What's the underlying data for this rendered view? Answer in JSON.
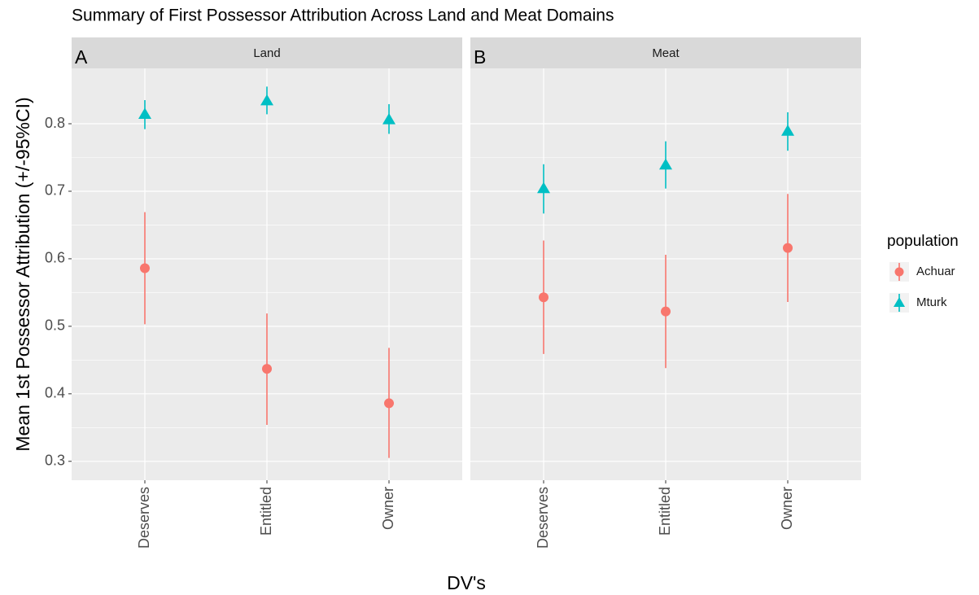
{
  "chart_data": {
    "type": "pointrange",
    "title": "Summary of First Possessor Attribution Across Land and Meat Domains",
    "x_label": "DV's",
    "y_label": "Mean 1st Possessor Attribution (+/-95%CI)",
    "legend_title": "population",
    "ylim": [
      0.272,
      0.882
    ],
    "yticks": [
      0.3,
      0.4,
      0.5,
      0.6,
      0.7,
      0.8
    ],
    "grid": true,
    "categories": [
      "Deserves",
      "Entitled",
      "Owner"
    ],
    "series": [
      {
        "name": "Achuar",
        "color": "#F8766D",
        "marker": "circle"
      },
      {
        "name": "Mturk",
        "color": "#00BFC4",
        "marker": "triangle"
      }
    ],
    "facets": [
      {
        "strip": "Land",
        "tag": "A",
        "data": [
          {
            "values": [
              0.586,
              0.437,
              0.386
            ],
            "lower": [
              0.503,
              0.354,
              0.305
            ],
            "upper": [
              0.669,
              0.519,
              0.468
            ]
          },
          {
            "values": [
              0.814,
              0.834,
              0.806
            ],
            "lower": [
              0.792,
              0.814,
              0.785
            ],
            "upper": [
              0.835,
              0.855,
              0.829
            ]
          }
        ]
      },
      {
        "strip": "Meat",
        "tag": "B",
        "data": [
          {
            "values": [
              0.543,
              0.522,
              0.616
            ],
            "lower": [
              0.459,
              0.438,
              0.536
            ],
            "upper": [
              0.627,
              0.606,
              0.696
            ]
          },
          {
            "values": [
              0.704,
              0.739,
              0.789
            ],
            "lower": [
              0.667,
              0.704,
              0.76
            ],
            "upper": [
              0.74,
              0.774,
              0.817
            ]
          }
        ]
      }
    ]
  }
}
